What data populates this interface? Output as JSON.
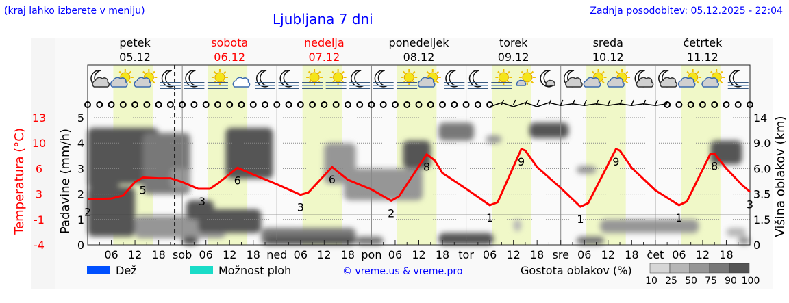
{
  "header": {
    "hint": "(kraj lahko izberete v meniju)",
    "title": "Ljubljana 7 dni",
    "updated": "Zadnja posodobitev: 05.12.2025 - 22:04"
  },
  "days": [
    {
      "name": "petek",
      "date": "05.12",
      "weekend": false,
      "abbr": ""
    },
    {
      "name": "sobota",
      "date": "06.12",
      "weekend": true,
      "abbr": "sob"
    },
    {
      "name": "nedelja",
      "date": "07.12",
      "weekend": true,
      "abbr": "ned"
    },
    {
      "name": "ponedeljek",
      "date": "08.12",
      "weekend": false,
      "abbr": "pon"
    },
    {
      "name": "torek",
      "date": "09.12",
      "weekend": false,
      "abbr": "tor"
    },
    {
      "name": "sreda",
      "date": "10.12",
      "weekend": false,
      "abbr": "sre"
    },
    {
      "name": "četrtek",
      "date": "11.12",
      "weekend": false,
      "abbr": "čet"
    }
  ],
  "hour_ticks": [
    "06",
    "12",
    "18"
  ],
  "colors": {
    "weekend": "#ff0000",
    "temperature": "#ff0000",
    "daylight": "#f0f8c8",
    "text_blue": "#0000ff",
    "rain": "#0050ff",
    "showers": "#1adcc8"
  },
  "chart_data": {
    "type": "meteogram",
    "now_hour": 22.07,
    "daylight_hours": [
      6.5,
      16.5
    ],
    "left_axis": {
      "label": "Padavine (mm/h)",
      "ticks": [
        "0",
        "1",
        "2",
        "3",
        "4",
        "5"
      ],
      "range": [
        0,
        5
      ]
    },
    "temp_axis": {
      "label": "Temperatura (°C)",
      "ticks": [
        "-4",
        "-1",
        "3",
        "6",
        "10",
        "13"
      ],
      "range": [
        -4,
        13
      ]
    },
    "right_axis": {
      "label": "Višina oblakov (km)",
      "ticks": [
        "0",
        "1.5",
        "3.5",
        "6.0",
        "9.0",
        "14"
      ]
    },
    "precipitation": [],
    "temperature": [
      [
        0,
        2.1
      ],
      [
        6,
        2.2
      ],
      [
        9,
        2.6
      ],
      [
        12,
        4.4
      ],
      [
        14,
        5.0
      ],
      [
        18,
        4.9
      ],
      [
        21,
        4.9
      ],
      [
        24,
        4.4
      ],
      [
        28,
        3.5
      ],
      [
        31,
        3.5
      ],
      [
        33,
        4.2
      ],
      [
        38,
        6.3
      ],
      [
        42,
        5.4
      ],
      [
        48,
        4.1
      ],
      [
        54,
        2.7
      ],
      [
        56,
        3.0
      ],
      [
        62,
        6.4
      ],
      [
        66,
        4.7
      ],
      [
        72,
        3.4
      ],
      [
        77,
        1.9
      ],
      [
        79,
        2.5
      ],
      [
        86,
        8.1
      ],
      [
        88,
        7.3
      ],
      [
        90,
        5.6
      ],
      [
        96,
        3.5
      ],
      [
        102,
        1.3
      ],
      [
        104,
        1.7
      ],
      [
        110,
        8.8
      ],
      [
        111,
        8.6
      ],
      [
        114,
        6.4
      ],
      [
        120,
        3.6
      ],
      [
        125,
        1.1
      ],
      [
        127,
        1.6
      ],
      [
        134,
        8.8
      ],
      [
        135,
        8.6
      ],
      [
        138,
        6.3
      ],
      [
        144,
        3.3
      ],
      [
        150,
        1.3
      ],
      [
        152,
        1.8
      ],
      [
        158,
        8.2
      ],
      [
        159,
        8.2
      ],
      [
        162,
        6.2
      ],
      [
        166,
        4.0
      ],
      [
        168,
        3.1
      ]
    ],
    "temperature_labels": [
      {
        "hour": 0,
        "label": "2"
      },
      {
        "hour": 14,
        "label": "5"
      },
      {
        "hour": 29,
        "label": "3"
      },
      {
        "hour": 38,
        "label": "6"
      },
      {
        "hour": 54,
        "label": "3"
      },
      {
        "hour": 62,
        "label": "6"
      },
      {
        "hour": 77,
        "label": "2"
      },
      {
        "hour": 86,
        "label": "8"
      },
      {
        "hour": 102,
        "label": "1"
      },
      {
        "hour": 110,
        "label": "9"
      },
      {
        "hour": 125,
        "label": "1"
      },
      {
        "hour": 134,
        "label": "9"
      },
      {
        "hour": 150,
        "label": "1"
      },
      {
        "hour": 159,
        "label": "8"
      },
      {
        "hour": 168,
        "label": "3"
      }
    ],
    "clouds": [
      {
        "h": [
          0,
          12
        ],
        "km": [
          0.5,
          4.2
        ],
        "d": 90
      },
      {
        "h": [
          0,
          8
        ],
        "km": [
          4.0,
          12
        ],
        "d": 90
      },
      {
        "h": [
          6,
          18
        ],
        "km": [
          4.5,
          12
        ],
        "d": 90
      },
      {
        "h": [
          14,
          26
        ],
        "km": [
          3.5,
          11
        ],
        "d": 75
      },
      {
        "h": [
          21,
          26
        ],
        "km": [
          4,
          6
        ],
        "d": 50
      },
      {
        "h": [
          12,
          35
        ],
        "km": [
          0.4,
          1.8
        ],
        "d": 50
      },
      {
        "h": [
          25,
          32
        ],
        "km": [
          1.5,
          3
        ],
        "d": 90
      },
      {
        "h": [
          28,
          44
        ],
        "km": [
          0.7,
          2.3
        ],
        "d": 90
      },
      {
        "h": [
          35,
          47
        ],
        "km": [
          5,
          12
        ],
        "d": 90
      },
      {
        "h": [
          24,
          28
        ],
        "km": [
          0,
          0.5
        ],
        "d": 90
      },
      {
        "h": [
          44,
          54
        ],
        "km": [
          0,
          1
        ],
        "d": 75
      },
      {
        "h": [
          52,
          68
        ],
        "km": [
          0,
          1
        ],
        "d": 75
      },
      {
        "h": [
          45,
          68
        ],
        "km": [
          0,
          0.5
        ],
        "d": 90
      },
      {
        "h": [
          60,
          68
        ],
        "km": [
          4.5,
          9
        ],
        "d": 50
      },
      {
        "h": [
          65,
          85
        ],
        "km": [
          3,
          6
        ],
        "d": 50
      },
      {
        "h": [
          80,
          87
        ],
        "km": [
          6,
          9.5
        ],
        "d": 90
      },
      {
        "h": [
          68,
          75
        ],
        "km": [
          0,
          0.5
        ],
        "d": 75
      },
      {
        "h": [
          89,
          103
        ],
        "km": [
          0,
          0.7
        ],
        "d": 90
      },
      {
        "h": [
          89,
          98
        ],
        "km": [
          9.5,
          13
        ],
        "d": 75
      },
      {
        "h": [
          101,
          105
        ],
        "km": [
          9,
          10.5
        ],
        "d": 50
      },
      {
        "h": [
          112,
          122
        ],
        "km": [
          10,
          13
        ],
        "d": 90
      },
      {
        "h": [
          108,
          110
        ],
        "km": [
          0.8,
          1.5
        ],
        "d": 25
      },
      {
        "h": [
          124,
          131
        ],
        "km": [
          0,
          0.5
        ],
        "d": 75
      },
      {
        "h": [
          130,
          155
        ],
        "km": [
          0.7,
          1.5
        ],
        "d": 50
      },
      {
        "h": [
          124,
          129
        ],
        "km": [
          5.5,
          6.3
        ],
        "d": 50
      },
      {
        "h": [
          158,
          166
        ],
        "km": [
          6.5,
          9.5
        ],
        "d": 90
      },
      {
        "h": [
          165,
          168
        ],
        "km": [
          0,
          0.5
        ],
        "d": 50
      },
      {
        "h": [
          162,
          167
        ],
        "km": [
          0.5,
          1.0
        ],
        "d": 25
      }
    ],
    "weather_icons": [
      "moon-cloud",
      "sun-cloud",
      "sun-cloud",
      "moon-fog",
      "moon-fog",
      "sun-fog",
      "cloud",
      "moon-fog",
      "moon-fog",
      "sun-fog",
      "sun-fog",
      "moon-fog",
      "moon-fog",
      "sun-fog",
      "sun-cloud",
      "moon-fog",
      "moon-fog",
      "sun-fog",
      "sun-small-cloud",
      "moon-small-cloud",
      "moon-cloud",
      "sun-cloud",
      "sun-cloud",
      "moon-cloud",
      "moon-cloud",
      "sun-cloud",
      "sun-cloud",
      "moon-fog"
    ],
    "wind_barbs_hours": [
      102,
      147
    ]
  },
  "legend": {
    "rain": "Dež",
    "showers": "Možnost ploh",
    "credit": "© vreme.us & vreme.pro",
    "cloud_density": "Gostota oblakov (%)",
    "density_levels": [
      "10",
      "25",
      "50",
      "75",
      "90",
      "100"
    ],
    "density_colors": [
      "#d6d6d6",
      "#b6b6b6",
      "#969696",
      "#787878",
      "#555555"
    ]
  }
}
